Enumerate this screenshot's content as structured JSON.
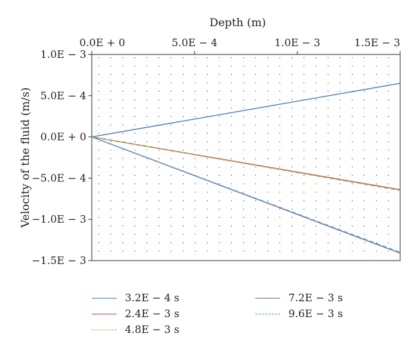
{
  "chart_data": {
    "type": "line",
    "xlabel": "Depth (m)",
    "ylabel": "Velocity of the fluid (m/s)",
    "xlim": [
      0,
      0.0015
    ],
    "ylim": [
      -0.0015,
      0.001
    ],
    "x_ticks": [
      {
        "value": 0,
        "label": "0.0E + 0"
      },
      {
        "value": 0.0005,
        "label": "5.0E − 4"
      },
      {
        "value": 0.001,
        "label": "1.0E − 3"
      },
      {
        "value": 0.0015,
        "label": "1.5E − 3"
      }
    ],
    "y_ticks": [
      {
        "value": 0.001,
        "label": "1.0E − 3"
      },
      {
        "value": 0.0005,
        "label": "5.0E − 4"
      },
      {
        "value": 0,
        "label": "0.0E + 0"
      },
      {
        "value": -0.0005,
        "label": "−5.0E − 4"
      },
      {
        "value": -0.001,
        "label": "−1.0E − 3"
      },
      {
        "value": -0.0015,
        "label": "−1.5E − 3"
      }
    ],
    "x_axis_position": "top",
    "grid": "dotted",
    "legend_position": "bottom",
    "series": [
      {
        "name": "3.2E − 4 s",
        "color": "#4f7fb8",
        "dash": "solid",
        "x": [
          0,
          0.0015
        ],
        "y": [
          0,
          0.00065
        ]
      },
      {
        "name": "2.4E − 3 s",
        "color": "#c0504d",
        "dash": "solid",
        "x": [
          0,
          0.0015
        ],
        "y": [
          0,
          -0.00064
        ]
      },
      {
        "name": "4.8E − 3 s",
        "color": "#9bbb59",
        "dash": "dashed",
        "x": [
          0,
          0.0015
        ],
        "y": [
          0,
          -0.00065
        ]
      },
      {
        "name": "7.2E − 3 s",
        "color": "#8064a2",
        "dash": "solid",
        "x": [
          0,
          0.0015
        ],
        "y": [
          0,
          -0.00141
        ]
      },
      {
        "name": "9.6E − 3 s",
        "color": "#4bacc6",
        "dash": "dashed",
        "x": [
          0,
          0.0015
        ],
        "y": [
          0,
          -0.0014
        ]
      }
    ]
  }
}
